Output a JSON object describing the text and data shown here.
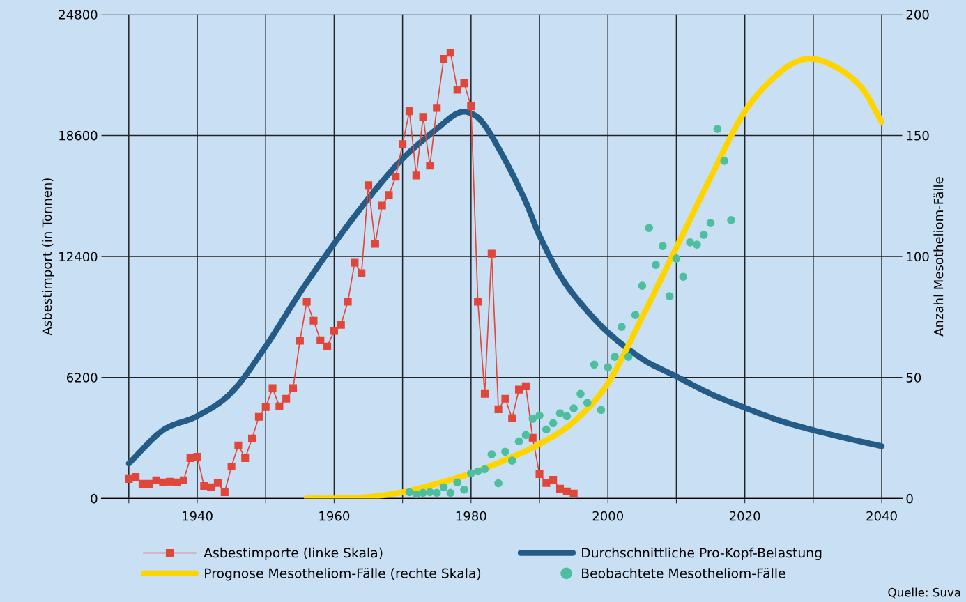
{
  "chart_data": {
    "type": "line",
    "ylabel": "Asbestimport (in Tonnen)",
    "y2label": "Anzahl Mesotheliom-Fälle",
    "xlim": [
      1926,
      2043
    ],
    "ylim": [
      0,
      24800
    ],
    "y2lim": [
      0,
      200
    ],
    "xticks": [
      {
        "value": 1930,
        "label": null
      },
      1940,
      {
        "value": 1950,
        "label": null
      },
      1960,
      {
        "value": 1970,
        "label": null
      },
      1980,
      {
        "value": 1990,
        "label": null
      },
      2000,
      {
        "value": 2010,
        "label": null
      },
      2020,
      {
        "value": 2030,
        "label": null
      },
      2040
    ],
    "yticks": [
      0,
      6200,
      12400,
      18600,
      24800
    ],
    "y2ticks": [
      0,
      50,
      100,
      150,
      200
    ],
    "grid": true,
    "legend": "bottom",
    "annotations": [
      "Quelle: Suva"
    ],
    "series": [
      {
        "name": "Asbestimporte (linke Skala)",
        "type": "line",
        "color": "#e0473a",
        "marker": "square",
        "x": [
          1930,
          1931,
          1932,
          1933,
          1934,
          1935,
          1936,
          1937,
          1938,
          1939,
          1940,
          1941,
          1942,
          1943,
          1944,
          1945,
          1946,
          1947,
          1948,
          1949,
          1950,
          1951,
          1952,
          1953,
          1954,
          1955,
          1956,
          1957,
          1958,
          1959,
          1960,
          1961,
          1962,
          1963,
          1964,
          1965,
          1966,
          1967,
          1968,
          1969,
          1970,
          1971,
          1972,
          1973,
          1974,
          1975,
          1976,
          1977,
          1978,
          1979,
          1980,
          1981,
          1982,
          1983,
          1984,
          1985,
          1986,
          1987,
          1988,
          1989,
          1990,
          1991,
          1992,
          1993,
          1994,
          1995
        ],
        "values": [
          1000,
          1100,
          750,
          750,
          930,
          820,
          860,
          820,
          930,
          2070,
          2140,
          640,
          570,
          790,
          320,
          1640,
          2720,
          2070,
          3070,
          4180,
          4680,
          5650,
          4720,
          5110,
          5650,
          8080,
          10080,
          9110,
          8110,
          7790,
          8580,
          8900,
          10080,
          12080,
          11540,
          16050,
          13050,
          15010,
          15550,
          16480,
          18160,
          19840,
          16550,
          19550,
          17050,
          20010,
          22520,
          22840,
          20940,
          21270,
          20090,
          10080,
          5360,
          12540,
          4570,
          5110,
          4110,
          5580,
          5750,
          3110,
          1250,
          790,
          960,
          500,
          360,
          250
        ]
      },
      {
        "name": "Prognose Mesotheliom-Fälle (rechte Skala)",
        "type": "line",
        "color": "#ffd500",
        "axis": "y2",
        "x": [
          1956,
          1960,
          1965,
          1970,
          1975,
          1980,
          1985,
          1990,
          1995,
          2000,
          2005,
          2010,
          2015,
          2020,
          2025,
          2029,
          2033,
          2037,
          2040
        ],
        "values": [
          0,
          0,
          0.6,
          2.6,
          6.1,
          10.4,
          15.9,
          22.5,
          31.7,
          47.6,
          74.9,
          103.7,
          132.6,
          159.9,
          175.8,
          181.6,
          178.7,
          170,
          155.6
        ]
      },
      {
        "name": "Durchschnittliche Pro-Kopf-Belastung",
        "color": "#255c87",
        "x": [
          1930,
          1935,
          1940,
          1945,
          1950,
          1955,
          1960,
          1965,
          1970,
          1975,
          1978,
          1980,
          1982,
          1985,
          1988,
          1990,
          1993,
          1996,
          2000,
          2005,
          2010,
          2015,
          2020,
          2025,
          2030,
          2035,
          2040
        ],
        "values": [
          1790,
          3500,
          4220,
          5430,
          7790,
          10540,
          13050,
          15370,
          17410,
          18940,
          19730,
          19730,
          19120,
          17330,
          15190,
          13470,
          11440,
          10010,
          8510,
          7150,
          6250,
          5360,
          4650,
          4000,
          3500,
          3070,
          2680
        ]
      },
      {
        "name": "Beobachtete Mesotheliom-Fälle",
        "type": "scatter",
        "color": "#4dbf9f",
        "axis": "y2",
        "x": [
          1971,
          1972,
          1973,
          1974,
          1975,
          1976,
          1977,
          1978,
          1979,
          1980,
          1981,
          1982,
          1983,
          1984,
          1985,
          1986,
          1987,
          1988,
          1989,
          1990,
          1991,
          1992,
          1993,
          1994,
          1995,
          1996,
          1997,
          1998,
          1999,
          2000,
          2001,
          2002,
          2003,
          2004,
          2005,
          2006,
          2007,
          2008,
          2009,
          2010,
          2011,
          2012,
          2013,
          2014,
          2015,
          2016,
          2017,
          2018
        ],
        "values": [
          2.6,
          1.7,
          2.3,
          2.6,
          2.3,
          4.6,
          2.3,
          6.6,
          3.7,
          10.4,
          11.2,
          12.1,
          18.2,
          6.3,
          19.3,
          15.6,
          23.6,
          26.2,
          32.9,
          34.3,
          28.5,
          31.1,
          35.2,
          34,
          37.2,
          43.2,
          39.5,
          55.3,
          36.6,
          54.2,
          58.5,
          70.9,
          58.5,
          75.8,
          87.9,
          111.8,
          96.5,
          104.3,
          83.6,
          99.1,
          91.6,
          105.8,
          104.9,
          108.9,
          113.8,
          152.7,
          139.5,
          115
        ]
      }
    ]
  }
}
